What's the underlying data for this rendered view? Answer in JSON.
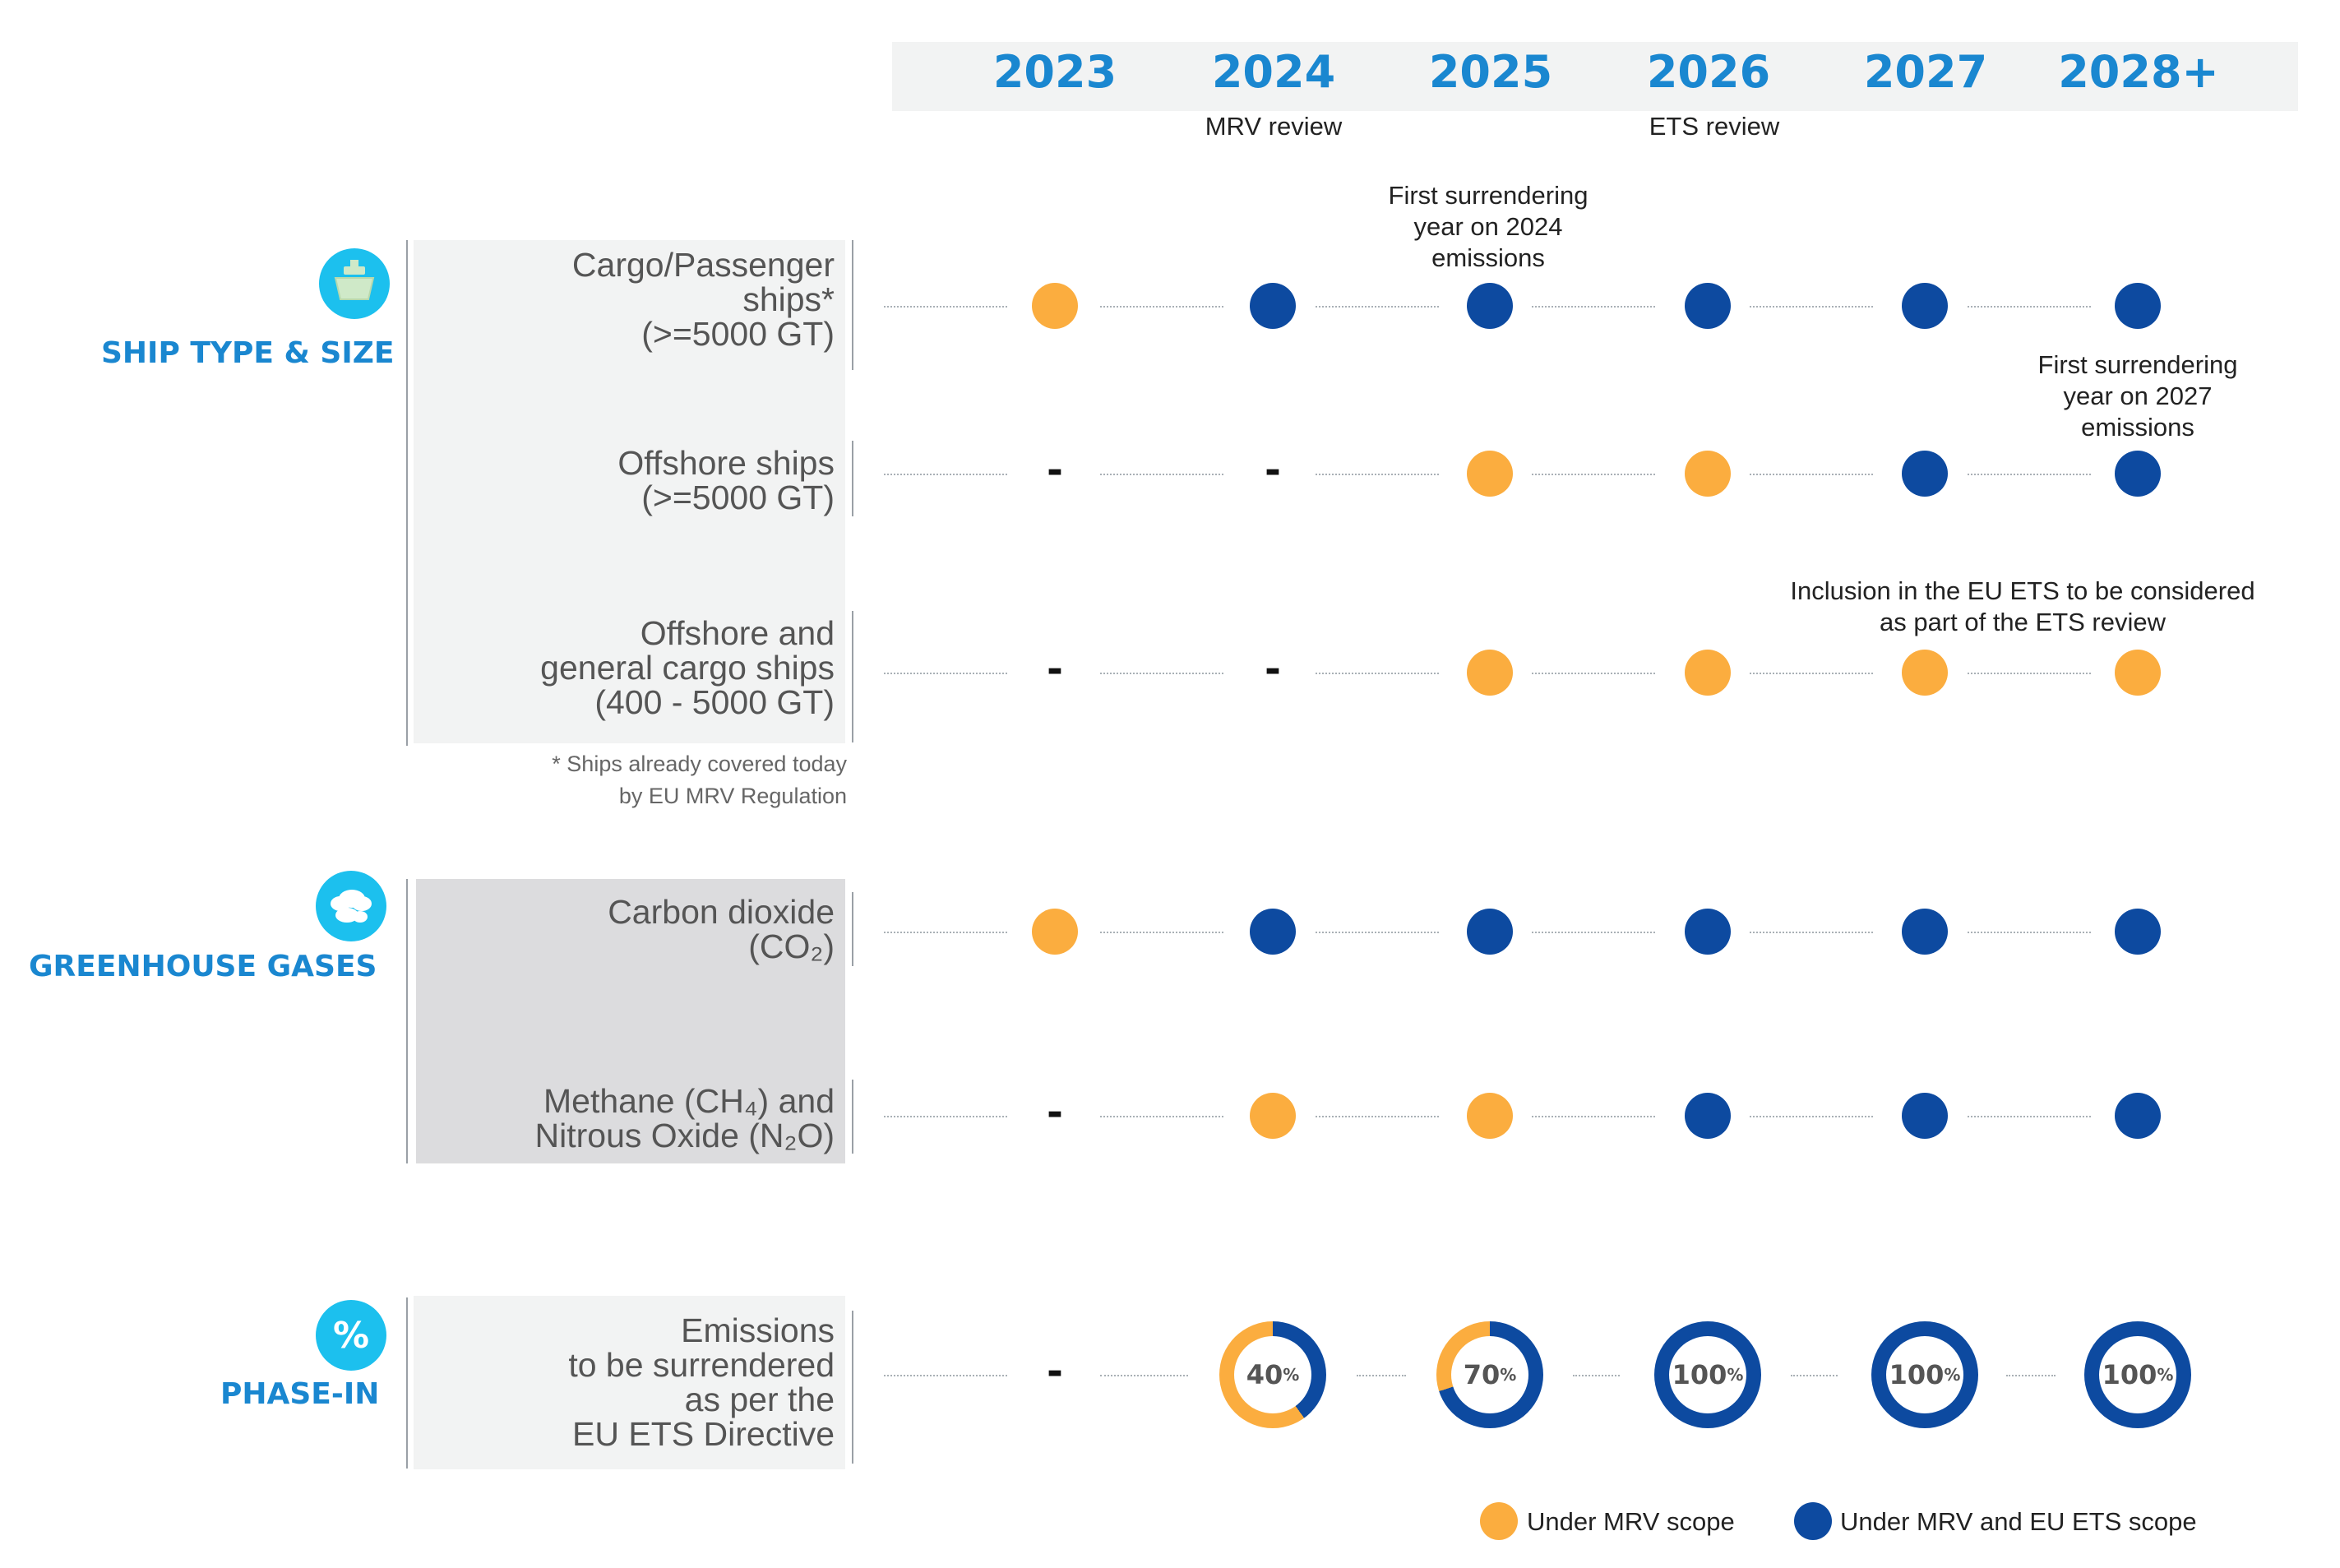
{
  "years": [
    "2023",
    "2024",
    "2025",
    "2026",
    "2027",
    "2028+"
  ],
  "year_notes": {
    "mrv_review": "MRV review",
    "ets_review": "ETS review"
  },
  "annotations": {
    "first_surrender_2024": [
      "First surrendering",
      "year on 2024",
      "emissions"
    ],
    "first_surrender_2027": [
      "First surrendering",
      "year on 2027",
      "emissions"
    ],
    "inclusion_review": [
      "Inclusion in the EU ETS to be considered",
      "as part of the ETS review"
    ]
  },
  "categories": {
    "ship_type": "SHIP TYPE & SIZE",
    "greenhouse_gases": "GREENHOUSE GASES",
    "phase_in": "PHASE-IN"
  },
  "icons": {
    "ship_type": "ship-icon",
    "greenhouse_gases": "cloud-icon",
    "phase_in": "percent-icon",
    "percent_glyph": "%"
  },
  "rows": {
    "cargo_passenger": {
      "label": [
        "Cargo/Passenger",
        "ships*",
        "(>=5000 GT)"
      ],
      "status": [
        "mrv",
        "ets",
        "ets",
        "ets",
        "ets",
        "ets"
      ]
    },
    "offshore": {
      "label": [
        "Offshore ships",
        "(>=5000 GT)"
      ],
      "status": [
        "none",
        "none",
        "mrv",
        "mrv",
        "ets",
        "ets"
      ]
    },
    "offshore_general": {
      "label": [
        "Offshore and",
        "general cargo ships",
        "(400 - 5000 GT)"
      ],
      "status": [
        "none",
        "none",
        "mrv",
        "mrv",
        "mrv",
        "mrv"
      ]
    },
    "co2": {
      "label": [
        "Carbon dioxide",
        "(CO₂)"
      ],
      "status": [
        "mrv",
        "ets",
        "ets",
        "ets",
        "ets",
        "ets"
      ]
    },
    "ch4_n2o": {
      "label": [
        "Methane (CH₄) and",
        "Nitrous Oxide (N₂O)"
      ],
      "status": [
        "none",
        "mrv",
        "mrv",
        "ets",
        "ets",
        "ets"
      ]
    },
    "phase_in": {
      "label": [
        "Emissions",
        "to be surrendered",
        "as per the",
        "EU ETS Directive"
      ],
      "percent": [
        null,
        40,
        70,
        100,
        100,
        100
      ],
      "unit": "%"
    }
  },
  "footnote": [
    "*   Ships already covered today",
    "by EU MRV Regulation"
  ],
  "none_marker": "-",
  "legend": {
    "mrv": "Under MRV scope",
    "ets": "Under MRV and EU ETS scope"
  },
  "colors": {
    "mrv": "#fbad3f",
    "ets": "#0d4aa0",
    "accent": "#1a87d0",
    "icon_bg": "#1cc0ee"
  }
}
